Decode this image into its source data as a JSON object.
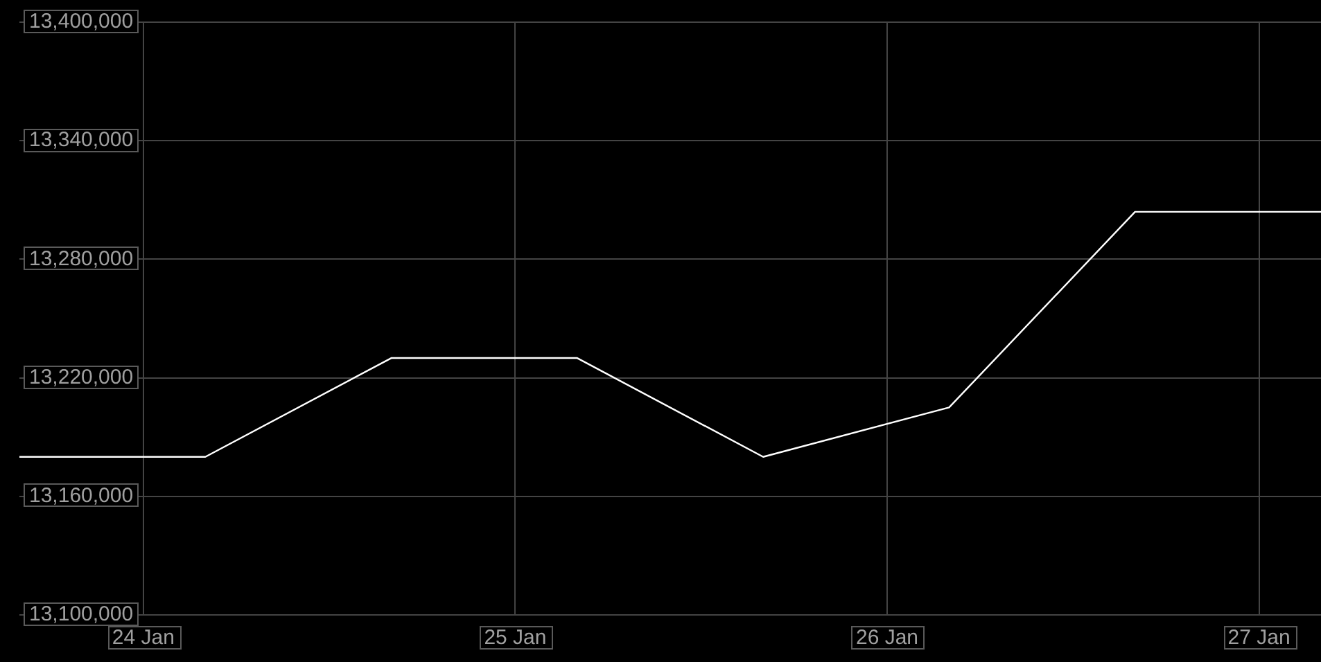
{
  "chart_data": {
    "type": "line",
    "x": [
      "--01-23T16:00",
      "--01-24T04:00",
      "--01-24T16:00",
      "--01-25T04:00",
      "--01-25T16:00",
      "--01-26T04:00",
      "--01-26T16:00",
      "--01-27T04:00"
    ],
    "values": [
      13180000,
      13180000,
      13230000,
      13230000,
      13180000,
      13205000,
      13304000,
      13304000
    ],
    "color": "#ffffff",
    "xlim": [
      "--01-23T16:00",
      "--01-27T04:00"
    ],
    "xticks": [
      {
        "value": "--01-24",
        "label": "24 Jan"
      },
      {
        "value": "--01-25",
        "label": "25 Jan"
      },
      {
        "value": "--01-26",
        "label": "26 Jan"
      },
      {
        "value": "--01-27",
        "label": "27 Jan"
      }
    ],
    "ylim": [
      13100000,
      13400000
    ],
    "yticks": [
      {
        "value": 13100000,
        "label": "13,100,000"
      },
      {
        "value": 13160000,
        "label": "13,160,000"
      },
      {
        "value": 13220000,
        "label": "13,220,000"
      },
      {
        "value": 13280000,
        "label": "13,280,000"
      },
      {
        "value": 13340000,
        "label": "13,340,000"
      },
      {
        "value": 13400000,
        "label": "13,400,000"
      }
    ],
    "grid": true,
    "legend": false,
    "marker": "none",
    "line_style": "solid"
  }
}
